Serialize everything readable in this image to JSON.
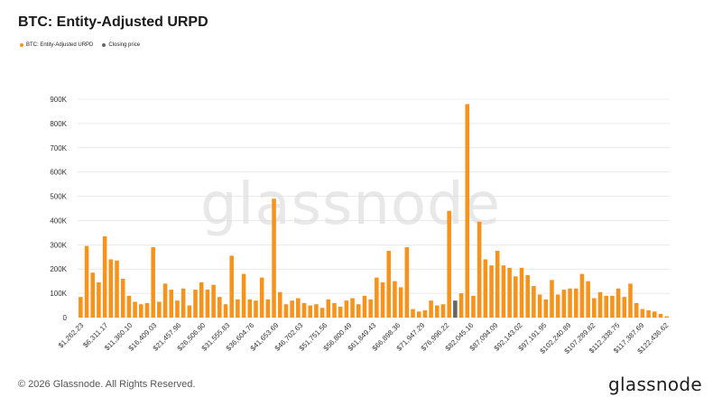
{
  "title": "BTC: Entity-Adjusted URPD",
  "legend": {
    "series_label": "BTC: Entity-Adjusted URPD",
    "closing_label": "Closing price"
  },
  "colors": {
    "bar": "#f7931a",
    "closing": "#666666",
    "grid": "#dddddd"
  },
  "watermark": "glassnode",
  "footer": {
    "copyright": "© 2026 Glassnode. All Rights Reserved.",
    "logo": "glassnode"
  },
  "chart_data": {
    "type": "bar",
    "title": "BTC: Entity-Adjusted URPD",
    "xlabel": "",
    "ylabel": "",
    "ylim": [
      0,
      900000
    ],
    "yticks": [
      0,
      100000,
      200000,
      300000,
      400000,
      500000,
      600000,
      700000,
      800000,
      900000
    ],
    "ytick_labels": [
      "0",
      "100K",
      "200K",
      "300K",
      "400K",
      "500K",
      "600K",
      "700K",
      "800K",
      "900K"
    ],
    "grid": true,
    "legend_position": "top-left",
    "xtick_labels": [
      "$1,262.23",
      "$6,311.17",
      "$11,360.10",
      "$16,409.03",
      "$21,457.96",
      "$26,506.90",
      "$31,555.83",
      "$36,604.76",
      "$41,653.69",
      "$46,702.63",
      "$51,751.56",
      "$56,800.49",
      "$61,849.43",
      "$66,898.36",
      "$71,947.29",
      "$76,996.22",
      "$82,045.16",
      "$87,094.09",
      "$92,143.02",
      "$97,191.95",
      "$102,240.89",
      "$107,289.82",
      "$112,338.75",
      "$117,387.69",
      "$122,436.62"
    ],
    "closing_price_index": 62,
    "values": [
      85000,
      295000,
      185000,
      145000,
      335000,
      240000,
      235000,
      160000,
      90000,
      65000,
      55000,
      60000,
      290000,
      65000,
      140000,
      115000,
      70000,
      120000,
      50000,
      115000,
      145000,
      115000,
      135000,
      85000,
      55000,
      255000,
      75000,
      180000,
      75000,
      70000,
      165000,
      75000,
      490000,
      105000,
      55000,
      70000,
      80000,
      60000,
      50000,
      55000,
      40000,
      75000,
      60000,
      45000,
      70000,
      80000,
      55000,
      90000,
      75000,
      165000,
      145000,
      275000,
      150000,
      125000,
      290000,
      35000,
      25000,
      30000,
      70000,
      50000,
      55000,
      440000,
      70000,
      100000,
      880000,
      90000,
      395000,
      240000,
      215000,
      275000,
      215000,
      205000,
      170000,
      205000,
      175000,
      130000,
      95000,
      75000,
      155000,
      95000,
      115000,
      120000,
      120000,
      180000,
      150000,
      80000,
      105000,
      90000,
      90000,
      120000,
      85000,
      140000,
      60000,
      35000,
      30000,
      25000,
      15000,
      5000
    ]
  }
}
